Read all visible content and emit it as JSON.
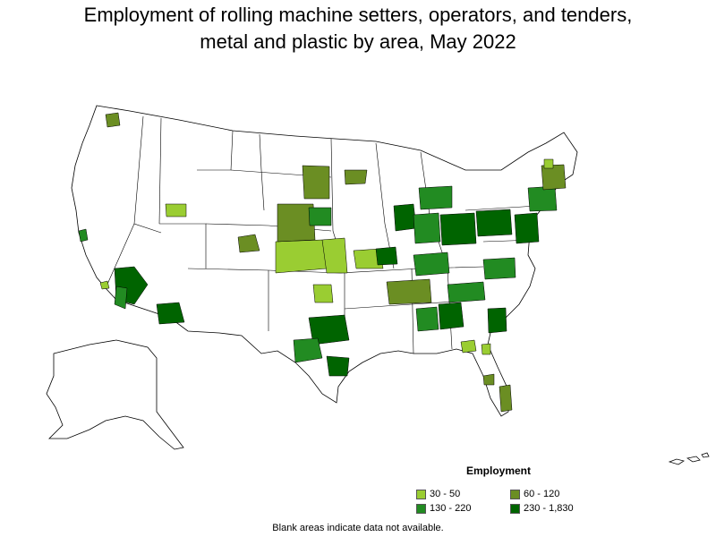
{
  "title_line1": "Employment of rolling machine setters, operators, and tenders,",
  "title_line2": "metal and plastic by area, May 2022",
  "legend": {
    "title": "Employment",
    "items": [
      {
        "label": "30 - 50",
        "color": "#9acd32"
      },
      {
        "label": "60 - 120",
        "color": "#6b8e23"
      },
      {
        "label": "130 - 220",
        "color": "#228b22"
      },
      {
        "label": "230 - 1,830",
        "color": "#006400"
      }
    ]
  },
  "footnote": "Blank areas indicate data not available.",
  "colors": {
    "outline": "#000000",
    "no_data": "#ffffff"
  }
}
